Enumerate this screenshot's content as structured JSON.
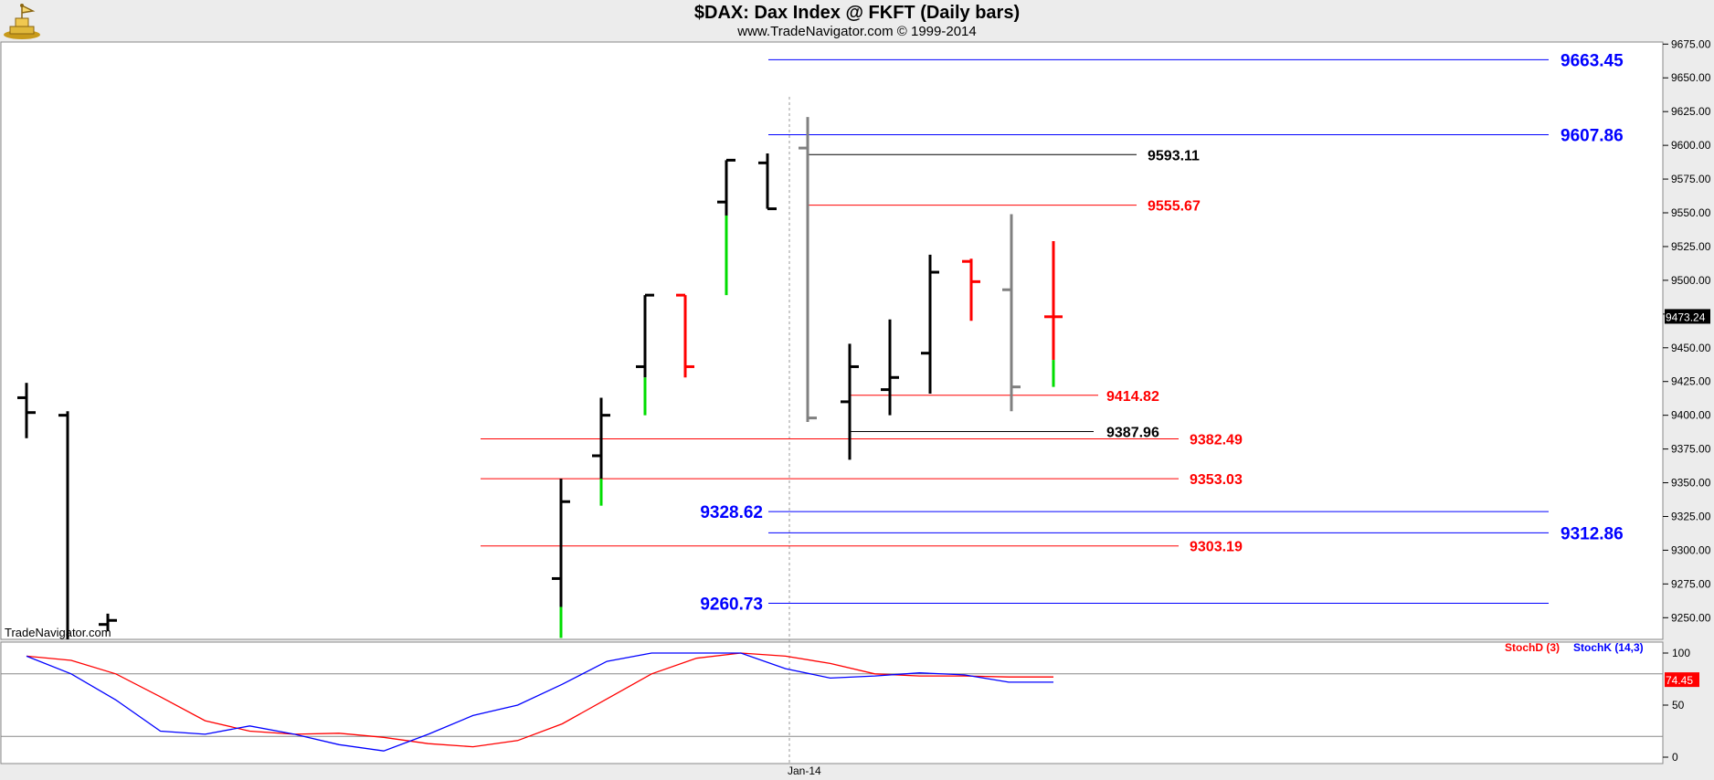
{
  "header": {
    "title": "$DAX:  Dax Index @ FKFT  (Daily bars)",
    "subtitle": "www.TradeNavigator.com © 1999-2014"
  },
  "watermark": "TradeNavigator.com",
  "colors": {
    "up": "#000000",
    "down": "#ff0000",
    "neutral": "#808080",
    "green": "#00dd00",
    "blue_line": "#0000ff",
    "red_line": "#ff0000",
    "black_line": "#000000",
    "last_price_bg": "#000000",
    "stoch_last_bg": "#ff0000"
  },
  "chart_data": [
    {
      "type": "ohlc",
      "title": "$DAX:  Dax Index @ FKFT  (Daily bars)",
      "ylim": [
        9235,
        9677
      ],
      "y_ticks": [
        "9675.00",
        "9650.00",
        "9625.00",
        "9600.00",
        "9575.00",
        "9550.00",
        "9525.00",
        "9500.00",
        "9475.00",
        "9450.00",
        "9425.00",
        "9400.00",
        "9375.00",
        "9350.00",
        "9325.00",
        "9300.00",
        "9275.00",
        "9250.00"
      ],
      "x_label": "Jan-14",
      "last_price": "9473.24",
      "bars": [
        {
          "h": 9424,
          "l": 9383,
          "o": 9413,
          "c": 9402,
          "color": "black"
        },
        {
          "h": 9403,
          "l": 9225,
          "o": 9400,
          "c": 9230,
          "color": "black"
        },
        {
          "h": 9253,
          "l": 9240,
          "o": 9245,
          "c": 9248,
          "color": "black"
        },
        {
          "h": 9353,
          "l": 9235,
          "o": 9279,
          "c": 9336,
          "color": "black",
          "green_to": 9258
        },
        {
          "h": 9413,
          "l": 9333,
          "o": 9370,
          "c": 9400,
          "color": "black",
          "green_to": 9353
        },
        {
          "h": 9489,
          "l": 9400,
          "o": 9436,
          "c": 9489,
          "color": "black",
          "green_to": 9428
        },
        {
          "h": 9489,
          "l": 9428,
          "o": 9489,
          "c": 9436,
          "color": "red"
        },
        {
          "h": 9589,
          "l": 9489,
          "o": 9558,
          "c": 9589,
          "color": "black",
          "green_to": 9548
        },
        {
          "h": 9594,
          "l": 9553,
          "o": 9587,
          "c": 9553,
          "color": "black"
        },
        {
          "h": 9621,
          "l": 9395,
          "o": 9598,
          "c": 9398,
          "color": "gray"
        },
        {
          "h": 9453,
          "l": 9367,
          "o": 9410,
          "c": 9436,
          "color": "black"
        },
        {
          "h": 9471,
          "l": 9400,
          "o": 9419,
          "c": 9428,
          "color": "black"
        },
        {
          "h": 9519,
          "l": 9416,
          "o": 9446,
          "c": 9506,
          "color": "black"
        },
        {
          "h": 9516,
          "l": 9470,
          "o": 9514,
          "c": 9499,
          "color": "red"
        },
        {
          "h": 9549,
          "l": 9403,
          "o": 9493,
          "c": 9421,
          "color": "gray"
        },
        {
          "h": 9529,
          "l": 9421,
          "o": 9473,
          "c": 9473,
          "color": "red",
          "green_to": 9441
        }
      ],
      "levels": [
        {
          "label": "9663.45",
          "value": 9663.45,
          "color": "blue"
        },
        {
          "label": "9607.86",
          "value": 9607.86,
          "color": "blue"
        },
        {
          "label": "9593.11",
          "value": 9593.11,
          "color": "black"
        },
        {
          "label": "9555.67",
          "value": 9555.67,
          "color": "red"
        },
        {
          "label": "9414.82",
          "value": 9414.82,
          "color": "red"
        },
        {
          "label": "9387.96",
          "value": 9387.96,
          "color": "black"
        },
        {
          "label": "9382.49",
          "value": 9382.49,
          "color": "red"
        },
        {
          "label": "9353.03",
          "value": 9353.03,
          "color": "red"
        },
        {
          "label": "9328.62",
          "value": 9328.62,
          "color": "blue"
        },
        {
          "label": "9312.86",
          "value": 9312.86,
          "color": "blue"
        },
        {
          "label": "9303.19",
          "value": 9303.19,
          "color": "red"
        },
        {
          "label": "9260.73",
          "value": 9260.73,
          "color": "blue"
        }
      ]
    },
    {
      "type": "line",
      "ylim": [
        -5,
        110
      ],
      "y_ticks": [
        "100",
        "50",
        "0"
      ],
      "reference_lines": [
        80,
        20
      ],
      "last_value": "74.45",
      "series": [
        {
          "name": "StochD (3)",
          "color": "red",
          "values": [
            97,
            93,
            80,
            58,
            35,
            25,
            22,
            23,
            19,
            13,
            10,
            16,
            32,
            56,
            80,
            95,
            100,
            97,
            90,
            80,
            78,
            78,
            77,
            77
          ]
        },
        {
          "name": "StochK (14,3)",
          "color": "blue",
          "values": [
            97,
            80,
            55,
            25,
            22,
            30,
            22,
            12,
            6,
            22,
            40,
            50,
            70,
            92,
            100,
            100,
            100,
            85,
            76,
            78,
            81,
            79,
            72,
            72
          ]
        }
      ]
    }
  ]
}
